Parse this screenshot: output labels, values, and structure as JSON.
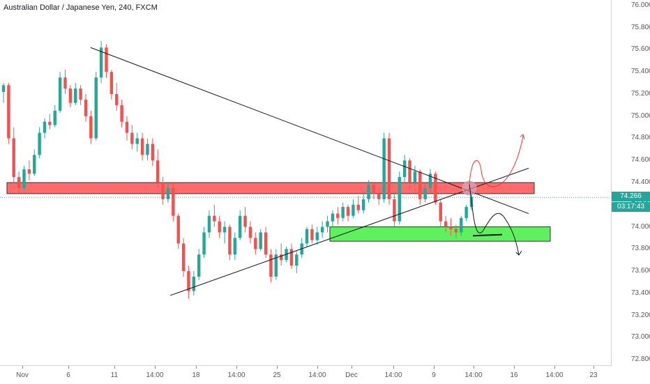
{
  "header": {
    "title": "Australian Dollar / Japanese Yen, 240, FXCM"
  },
  "price_axis": {
    "ticks": [
      "76.000",
      "75.800",
      "75.600",
      "75.400",
      "75.200",
      "75.000",
      "74.800",
      "74.600",
      "74.400",
      "74.200",
      "74.000",
      "73.800",
      "73.600",
      "73.400",
      "73.200",
      "73.000",
      "72.800"
    ],
    "last_price": "74.266",
    "countdown": "03:17:43"
  },
  "time_axis": {
    "ticks": [
      "Nov",
      "6",
      "11",
      "14:00",
      "18",
      "14:00",
      "25",
      "14:00",
      "Dec",
      "14:00",
      "9",
      "14:00",
      "16",
      "14:00",
      "23"
    ]
  },
  "colors": {
    "up": "#26a69a",
    "down": "#ef5350",
    "resistance_zone": "#ff6b6b",
    "support_zone": "#5ef05e",
    "trendline": "#131722",
    "forecast_up": "#e53935"
  },
  "chart_data": {
    "type": "candlestick",
    "symbol": "Australian Dollar / Japanese Yen",
    "interval": "240",
    "source": "FXCM",
    "y_range": [
      72.75,
      76.05
    ],
    "grid": false,
    "last_price": 74.266,
    "series": [
      {
        "values": [
          [
            75.22,
            75.3,
            75.12,
            75.28
          ],
          [
            75.28,
            75.3,
            74.75,
            74.8
          ],
          [
            74.8,
            74.9,
            74.4,
            74.45
          ],
          [
            74.45,
            74.5,
            74.3,
            74.35
          ],
          [
            74.35,
            74.55,
            74.33,
            74.52
          ],
          [
            74.52,
            74.6,
            74.42,
            74.48
          ],
          [
            74.48,
            74.7,
            74.46,
            74.65
          ],
          [
            74.65,
            74.9,
            74.62,
            74.85
          ],
          [
            74.85,
            74.98,
            74.8,
            74.95
          ],
          [
            74.95,
            75.02,
            74.88,
            74.92
          ],
          [
            74.92,
            75.1,
            74.9,
            75.05
          ],
          [
            75.05,
            75.4,
            75.03,
            75.35
          ],
          [
            75.35,
            75.42,
            75.2,
            75.25
          ],
          [
            75.25,
            75.28,
            75.08,
            75.12
          ],
          [
            75.12,
            75.3,
            75.1,
            75.25
          ],
          [
            75.25,
            75.28,
            75.1,
            75.15
          ],
          [
            75.15,
            75.2,
            74.95,
            75.0
          ],
          [
            75.0,
            75.05,
            74.75,
            74.8
          ],
          [
            74.8,
            75.4,
            74.78,
            75.35
          ],
          [
            75.35,
            75.68,
            75.3,
            75.62
          ],
          [
            75.62,
            75.65,
            75.35,
            75.4
          ],
          [
            75.4,
            75.42,
            75.15,
            75.2
          ],
          [
            75.2,
            75.3,
            75.05,
            75.1
          ],
          [
            75.1,
            75.15,
            74.9,
            74.95
          ],
          [
            74.95,
            75.0,
            74.78,
            74.85
          ],
          [
            74.85,
            74.92,
            74.7,
            74.75
          ],
          [
            74.75,
            74.85,
            74.68,
            74.8
          ],
          [
            74.8,
            74.85,
            74.6,
            74.65
          ],
          [
            74.65,
            74.8,
            74.6,
            74.75
          ],
          [
            74.75,
            74.8,
            74.55,
            74.6
          ],
          [
            74.6,
            74.7,
            74.35,
            74.4
          ],
          [
            74.4,
            74.45,
            74.2,
            74.25
          ],
          [
            74.25,
            74.4,
            74.22,
            74.35
          ],
          [
            74.35,
            74.4,
            74.05,
            74.1
          ],
          [
            74.1,
            74.12,
            73.8,
            73.85
          ],
          [
            73.85,
            73.9,
            73.55,
            73.6
          ],
          [
            73.6,
            73.65,
            73.35,
            73.42
          ],
          [
            73.42,
            73.6,
            73.38,
            73.55
          ],
          [
            73.55,
            73.8,
            73.52,
            73.75
          ],
          [
            73.75,
            74.0,
            73.72,
            73.95
          ],
          [
            73.95,
            74.15,
            73.9,
            74.1
          ],
          [
            74.1,
            74.2,
            74.0,
            74.05
          ],
          [
            74.05,
            74.1,
            73.9,
            73.95
          ],
          [
            73.95,
            74.05,
            73.85,
            74.0
          ],
          [
            74.0,
            74.02,
            73.7,
            73.75
          ],
          [
            73.75,
            73.95,
            73.7,
            73.9
          ],
          [
            73.9,
            74.15,
            73.88,
            74.1
          ],
          [
            74.1,
            74.18,
            73.95,
            74.0
          ],
          [
            74.0,
            74.05,
            73.85,
            73.9
          ],
          [
            73.9,
            73.95,
            73.75,
            73.8
          ],
          [
            73.8,
            73.98,
            73.78,
            73.95
          ],
          [
            73.95,
            74.0,
            73.72,
            73.75
          ],
          [
            73.75,
            73.8,
            73.5,
            73.55
          ],
          [
            73.55,
            73.8,
            73.52,
            73.75
          ],
          [
            73.75,
            73.85,
            73.65,
            73.7
          ],
          [
            73.7,
            73.82,
            73.68,
            73.8
          ],
          [
            73.8,
            73.85,
            73.62,
            73.65
          ],
          [
            73.65,
            73.78,
            73.58,
            73.75
          ],
          [
            73.75,
            73.9,
            73.72,
            73.85
          ],
          [
            73.85,
            74.0,
            73.82,
            73.98
          ],
          [
            73.98,
            74.02,
            73.85,
            73.88
          ],
          [
            73.88,
            74.0,
            73.84,
            73.95
          ],
          [
            73.95,
            74.05,
            73.9,
            74.0
          ],
          [
            74.0,
            74.1,
            73.95,
            74.05
          ],
          [
            74.05,
            74.15,
            74.0,
            74.12
          ],
          [
            74.12,
            74.18,
            74.02,
            74.08
          ],
          [
            74.08,
            74.22,
            74.05,
            74.18
          ],
          [
            74.18,
            74.2,
            74.05,
            74.1
          ],
          [
            74.1,
            74.25,
            74.08,
            74.2
          ],
          [
            74.2,
            74.28,
            74.12,
            74.15
          ],
          [
            74.15,
            74.3,
            74.12,
            74.25
          ],
          [
            74.25,
            74.42,
            74.22,
            74.38
          ],
          [
            74.38,
            74.4,
            74.25,
            74.3
          ],
          [
            74.3,
            74.35,
            74.2,
            74.25
          ],
          [
            74.25,
            74.85,
            74.22,
            74.8
          ],
          [
            74.8,
            74.85,
            74.2,
            74.25
          ],
          [
            74.25,
            74.3,
            74.0,
            74.05
          ],
          [
            74.05,
            74.5,
            74.02,
            74.45
          ],
          [
            74.45,
            74.65,
            74.4,
            74.6
          ],
          [
            74.6,
            74.62,
            74.35,
            74.4
          ],
          [
            74.4,
            74.55,
            74.38,
            74.5
          ],
          [
            74.5,
            74.52,
            74.2,
            74.25
          ],
          [
            74.25,
            74.4,
            74.22,
            74.35
          ],
          [
            74.35,
            74.52,
            74.3,
            74.48
          ],
          [
            74.48,
            74.5,
            74.2,
            74.22
          ],
          [
            74.22,
            74.25,
            74.0,
            74.05
          ],
          [
            74.05,
            74.1,
            73.95,
            74.0
          ],
          [
            74.0,
            74.08,
            73.92,
            73.98
          ],
          [
            73.98,
            74.02,
            73.9,
            73.95
          ],
          [
            73.95,
            74.1,
            73.92,
            74.08
          ],
          [
            74.08,
            74.2,
            74.05,
            74.18
          ],
          [
            74.18,
            74.3,
            74.15,
            74.27
          ]
        ]
      }
    ],
    "annotations": [
      {
        "type": "resistance_zone",
        "y": [
          74.3,
          74.4
        ]
      },
      {
        "type": "support_zone",
        "y": [
          73.87,
          74.0
        ]
      },
      {
        "type": "descending_trendline",
        "points": [
          [
            75.62
          ],
          [
            74.12
          ]
        ]
      },
      {
        "type": "ascending_trendline",
        "points": [
          [
            73.38
          ],
          [
            74.53
          ]
        ]
      },
      {
        "type": "forecast",
        "direction": "up"
      },
      {
        "type": "forecast",
        "direction": "down"
      }
    ]
  }
}
